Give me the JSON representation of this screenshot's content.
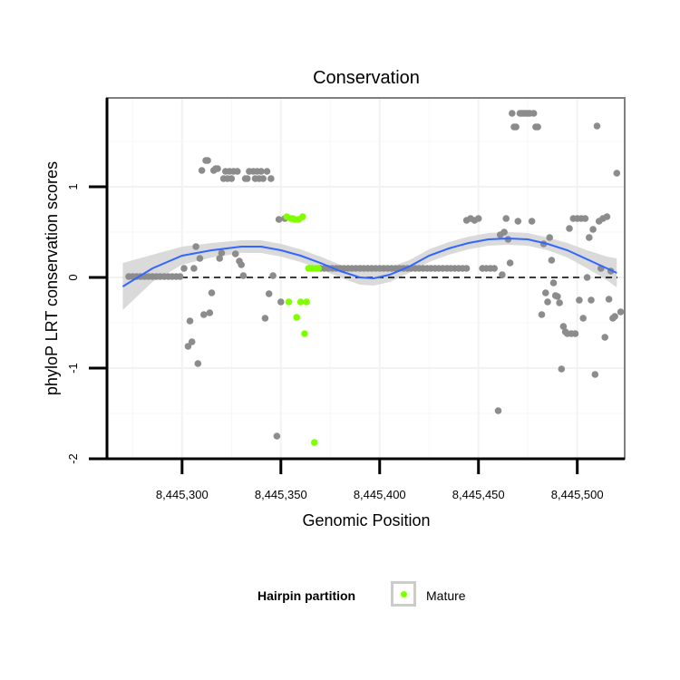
{
  "chart_data": {
    "type": "scatter",
    "title": "Conservation",
    "xlabel": "Genomic Position",
    "ylabel": "phyloP LRT conservation scores",
    "xlim": [
      8445262,
      8445524
    ],
    "ylim": [
      -2.0,
      1.98
    ],
    "x_ticks": [
      {
        "value": 8445300,
        "label": "8,445,300"
      },
      {
        "value": 8445350,
        "label": "8,445,350"
      },
      {
        "value": 8445400,
        "label": "8,445,400"
      },
      {
        "value": 8445450,
        "label": "8,445,450"
      },
      {
        "value": 8445500,
        "label": "8,445,500"
      }
    ],
    "y_ticks": [
      {
        "value": -2,
        "label": "-2"
      },
      {
        "value": -1,
        "label": "-1"
      },
      {
        "value": 0,
        "label": "0"
      },
      {
        "value": 1,
        "label": "1"
      }
    ],
    "grid": true,
    "reference_line": {
      "y": 0,
      "style": "dashed"
    },
    "legend": {
      "title": "Hairpin partition",
      "position": "bottom",
      "entries": [
        {
          "label": "Mature",
          "color": "#80ff00"
        }
      ]
    },
    "colors": {
      "other": "#8c8c8c",
      "mature": "#80ff00",
      "smooth": "#3366ff",
      "band": "#d3d3d3"
    },
    "series": [
      {
        "name": "Other",
        "points": [
          [
            8445273,
            0.01
          ],
          [
            8445275,
            0.01
          ],
          [
            8445277,
            0.01
          ],
          [
            8445279,
            0.01
          ],
          [
            8445281,
            0.01
          ],
          [
            8445283,
            0.01
          ],
          [
            8445285,
            0.01
          ],
          [
            8445287,
            0.01
          ],
          [
            8445289,
            0.01
          ],
          [
            8445291,
            0.01
          ],
          [
            8445293,
            0.01
          ],
          [
            8445295,
            0.01
          ],
          [
            8445297,
            0.01
          ],
          [
            8445299,
            0.01
          ],
          [
            8445301,
            0.1
          ],
          [
            8445303,
            -0.76
          ],
          [
            8445304,
            -0.48
          ],
          [
            8445305,
            -0.71
          ],
          [
            8445306,
            0.1
          ],
          [
            8445307,
            0.34
          ],
          [
            8445308,
            -0.95
          ],
          [
            8445309,
            0.21
          ],
          [
            8445310,
            1.18
          ],
          [
            8445311,
            -0.41
          ],
          [
            8445312,
            1.29
          ],
          [
            8445313,
            1.29
          ],
          [
            8445314,
            -0.39
          ],
          [
            8445315,
            -0.17
          ],
          [
            8445316,
            1.18
          ],
          [
            8445317,
            1.2
          ],
          [
            8445318,
            1.2
          ],
          [
            8445319,
            0.21
          ],
          [
            8445320,
            0.27
          ],
          [
            8445321,
            1.09
          ],
          [
            8445322,
            1.17
          ],
          [
            8445323,
            1.09
          ],
          [
            8445324,
            1.17
          ],
          [
            8445325,
            1.09
          ],
          [
            8445326,
            1.17
          ],
          [
            8445327,
            0.26
          ],
          [
            8445328,
            1.17
          ],
          [
            8445329,
            0.18
          ],
          [
            8445330,
            0.14
          ],
          [
            8445331,
            0.02
          ],
          [
            8445332,
            1.09
          ],
          [
            8445333,
            1.09
          ],
          [
            8445334,
            1.17
          ],
          [
            8445336,
            1.17
          ],
          [
            8445337,
            1.09
          ],
          [
            8445338,
            1.17
          ],
          [
            8445339,
            1.09
          ],
          [
            8445340,
            1.17
          ],
          [
            8445341,
            1.09
          ],
          [
            8445342,
            -0.45
          ],
          [
            8445343,
            1.17
          ],
          [
            8445344,
            -0.18
          ],
          [
            8445345,
            1.09
          ],
          [
            8445346,
            0.02
          ],
          [
            8445348,
            -1.75
          ],
          [
            8445349,
            0.64
          ],
          [
            8445350,
            -0.27
          ],
          [
            8445352,
            0.65
          ],
          [
            8445370,
            0.1
          ],
          [
            8445372,
            0.1
          ],
          [
            8445374,
            0.1
          ],
          [
            8445376,
            0.1
          ],
          [
            8445378,
            0.1
          ],
          [
            8445380,
            0.1
          ],
          [
            8445382,
            0.1
          ],
          [
            8445384,
            0.1
          ],
          [
            8445386,
            0.1
          ],
          [
            8445388,
            0.1
          ],
          [
            8445390,
            0.1
          ],
          [
            8445392,
            0.1
          ],
          [
            8445394,
            0.1
          ],
          [
            8445396,
            0.1
          ],
          [
            8445398,
            0.1
          ],
          [
            8445400,
            0.1
          ],
          [
            8445402,
            0.1
          ],
          [
            8445404,
            0.1
          ],
          [
            8445406,
            0.1
          ],
          [
            8445408,
            0.1
          ],
          [
            8445410,
            0.1
          ],
          [
            8445412,
            0.1
          ],
          [
            8445414,
            0.1
          ],
          [
            8445416,
            0.1
          ],
          [
            8445418,
            0.1
          ],
          [
            8445420,
            0.1
          ],
          [
            8445422,
            0.1
          ],
          [
            8445424,
            0.1
          ],
          [
            8445426,
            0.1
          ],
          [
            8445428,
            0.1
          ],
          [
            8445430,
            0.1
          ],
          [
            8445432,
            0.1
          ],
          [
            8445434,
            0.1
          ],
          [
            8445436,
            0.1
          ],
          [
            8445438,
            0.1
          ],
          [
            8445440,
            0.1
          ],
          [
            8445442,
            0.1
          ],
          [
            8445444,
            0.1
          ],
          [
            8445444,
            0.63
          ],
          [
            8445446,
            0.65
          ],
          [
            8445448,
            0.63
          ],
          [
            8445450,
            0.65
          ],
          [
            8445452,
            0.1
          ],
          [
            8445454,
            0.1
          ],
          [
            8445456,
            0.1
          ],
          [
            8445458,
            0.1
          ],
          [
            8445460,
            -1.47
          ],
          [
            8445461,
            0.47
          ],
          [
            8445462,
            0.03
          ],
          [
            8445463,
            0.5
          ],
          [
            8445464,
            0.65
          ],
          [
            8445465,
            0.42
          ],
          [
            8445466,
            0.16
          ],
          [
            8445467,
            1.81
          ],
          [
            8445468,
            1.66
          ],
          [
            8445469,
            1.66
          ],
          [
            8445470,
            0.62
          ],
          [
            8445471,
            1.81
          ],
          [
            8445472,
            1.81
          ],
          [
            8445473,
            1.81
          ],
          [
            8445474,
            1.81
          ],
          [
            8445475,
            1.81
          ],
          [
            8445476,
            1.81
          ],
          [
            8445477,
            0.62
          ],
          [
            8445478,
            1.81
          ],
          [
            8445479,
            1.66
          ],
          [
            8445480,
            1.66
          ],
          [
            8445482,
            -0.41
          ],
          [
            8445483,
            0.37
          ],
          [
            8445484,
            -0.17
          ],
          [
            8445485,
            -0.27
          ],
          [
            8445486,
            0.44
          ],
          [
            8445487,
            0.19
          ],
          [
            8445488,
            -0.06
          ],
          [
            8445489,
            -0.2
          ],
          [
            8445490,
            -0.21
          ],
          [
            8445491,
            -0.28
          ],
          [
            8445492,
            -1.01
          ],
          [
            8445493,
            -0.54
          ],
          [
            8445494,
            -0.6
          ],
          [
            8445495,
            -0.62
          ],
          [
            8445496,
            0.54
          ],
          [
            8445497,
            -0.62
          ],
          [
            8445498,
            0.65
          ],
          [
            8445499,
            -0.62
          ],
          [
            8445500,
            0.65
          ],
          [
            8445501,
            -0.25
          ],
          [
            8445502,
            0.65
          ],
          [
            8445503,
            -0.45
          ],
          [
            8445504,
            0.65
          ],
          [
            8445505,
            0.0
          ],
          [
            8445506,
            0.44
          ],
          [
            8445507,
            -0.25
          ],
          [
            8445508,
            0.53
          ],
          [
            8445509,
            -1.07
          ],
          [
            8445510,
            1.67
          ],
          [
            8445511,
            0.62
          ],
          [
            8445512,
            0.1
          ],
          [
            8445513,
            0.65
          ],
          [
            8445514,
            -0.66
          ],
          [
            8445515,
            0.67
          ],
          [
            8445516,
            -0.24
          ],
          [
            8445517,
            0.07
          ],
          [
            8445518,
            -0.45
          ],
          [
            8445519,
            -0.43
          ],
          [
            8445520,
            1.15
          ],
          [
            8445522,
            -0.38
          ]
        ]
      },
      {
        "name": "Mature",
        "points": [
          [
            8445353,
            0.67
          ],
          [
            8445354,
            -0.27
          ],
          [
            8445355,
            0.65
          ],
          [
            8445356,
            0.65
          ],
          [
            8445357,
            0.64
          ],
          [
            8445358,
            -0.44
          ],
          [
            8445359,
            0.64
          ],
          [
            8445360,
            -0.27
          ],
          [
            8445361,
            0.67
          ],
          [
            8445362,
            -0.62
          ],
          [
            8445363,
            -0.27
          ],
          [
            8445364,
            0.1
          ],
          [
            8445365,
            0.1
          ],
          [
            8445366,
            0.1
          ],
          [
            8445367,
            -1.82
          ],
          [
            8445368,
            0.1
          ],
          [
            8445369,
            0.1
          ]
        ]
      }
    ],
    "smooth_curve": [
      [
        8445270,
        -0.1
      ],
      [
        8445285,
        0.1
      ],
      [
        8445300,
        0.24
      ],
      [
        8445315,
        0.3
      ],
      [
        8445330,
        0.34
      ],
      [
        8445340,
        0.34
      ],
      [
        8445350,
        0.3
      ],
      [
        8445360,
        0.24
      ],
      [
        8445370,
        0.16
      ],
      [
        8445380,
        0.07
      ],
      [
        8445390,
        0.0
      ],
      [
        8445397,
        -0.01
      ],
      [
        8445405,
        0.03
      ],
      [
        8445415,
        0.12
      ],
      [
        8445425,
        0.24
      ],
      [
        8445435,
        0.32
      ],
      [
        8445445,
        0.38
      ],
      [
        8445455,
        0.42
      ],
      [
        8445465,
        0.43
      ],
      [
        8445475,
        0.42
      ],
      [
        8445485,
        0.37
      ],
      [
        8445495,
        0.3
      ],
      [
        8445505,
        0.2
      ],
      [
        8445515,
        0.1
      ],
      [
        8445520,
        0.05
      ]
    ],
    "band_halfwidth": [
      0.26,
      0.15,
      0.1,
      0.08,
      0.07,
      0.07,
      0.07,
      0.07,
      0.07,
      0.07,
      0.08,
      0.08,
      0.08,
      0.07,
      0.07,
      0.07,
      0.07,
      0.07,
      0.07,
      0.07,
      0.07,
      0.08,
      0.1,
      0.13,
      0.16
    ]
  }
}
